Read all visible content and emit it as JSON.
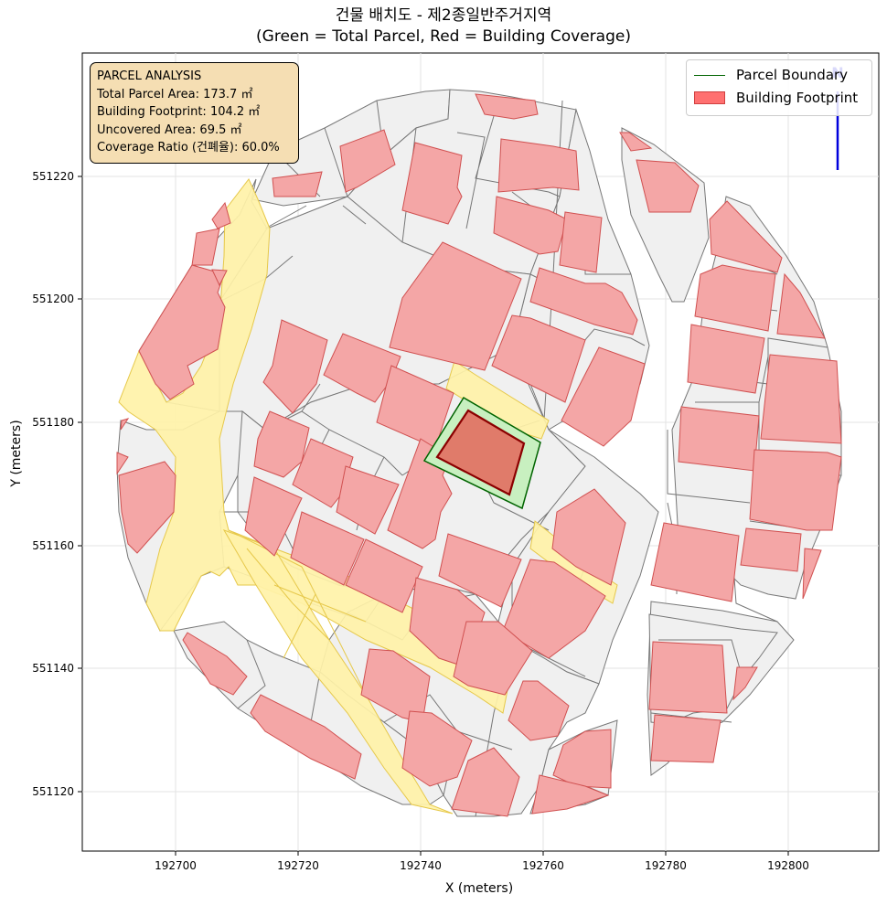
{
  "title_line1": "건물 배치도 - 제2종일반주거지역",
  "title_line2": "(Green = Total Parcel, Red = Building Coverage)",
  "analysis": {
    "heading": "PARCEL ANALYSIS",
    "total": "Total Parcel Area: 173.7 ㎡",
    "footprint": "Building Footprint: 104.2 ㎡",
    "uncovered": "Uncovered Area: 69.5 ㎡",
    "ratio": "Coverage Ratio (건폐율): 60.0%"
  },
  "legend": {
    "parcel": "Parcel Boundary",
    "building": "Building Footprint"
  },
  "north_arrow_label": "N",
  "axes": {
    "xlabel": "X (meters)",
    "ylabel": "Y (meters)",
    "xticks": [
      "192700",
      "192720",
      "192740",
      "192760",
      "192780",
      "192800"
    ],
    "yticks": [
      "551220",
      "551200",
      "551180",
      "551160",
      "551140",
      "551120"
    ]
  },
  "colors": {
    "parcel_fill": "#f0f0f0",
    "parcel_edge": "#777777",
    "road": "#fff2a8",
    "building": "#f4a6a6",
    "building_edge": "#d05050",
    "target_parcel": "#c8f0c0",
    "target_edge": "#006400",
    "target_building": "#e07b6a",
    "target_building_edge": "#8b0000",
    "box": "#f5deb3",
    "arrow": "#0000dd"
  }
}
